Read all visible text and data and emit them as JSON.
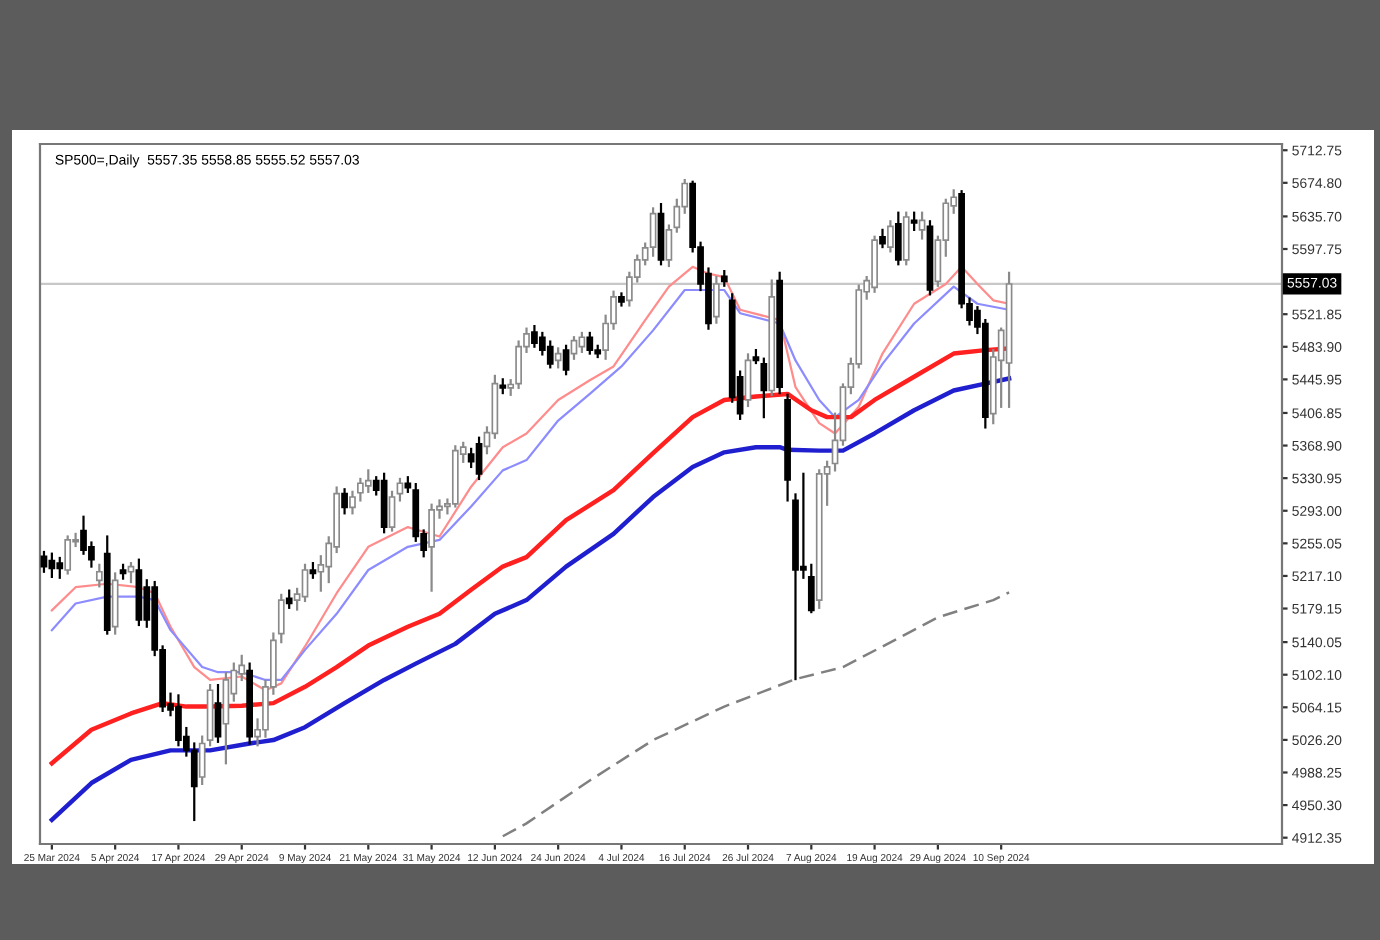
{
  "chart_data": {
    "type": "candlestick",
    "title": "SP500=,Daily  5557.35 5558.85 5555.52 5557.03",
    "categories": [
      null,
      "25 Mar 2024",
      null,
      null,
      null,
      null,
      null,
      null,
      null,
      "5 Apr 2024",
      null,
      null,
      null,
      null,
      null,
      null,
      null,
      "17 Apr 2024",
      null,
      null,
      null,
      null,
      null,
      null,
      null,
      "29 Apr 2024",
      null,
      null,
      null,
      null,
      null,
      null,
      null,
      "9 May 2024",
      null,
      null,
      null,
      null,
      null,
      null,
      null,
      "21 May 2024",
      null,
      null,
      null,
      null,
      null,
      null,
      null,
      "31 May 2024",
      null,
      null,
      null,
      null,
      null,
      null,
      null,
      "12 Jun 2024",
      null,
      null,
      null,
      null,
      null,
      null,
      null,
      "24 Jun 2024",
      null,
      null,
      null,
      null,
      null,
      null,
      null,
      "4 Jul 2024",
      null,
      null,
      null,
      null,
      null,
      null,
      null,
      "16 Jul 2024",
      null,
      null,
      null,
      null,
      null,
      null,
      null,
      "26 Jul 2024",
      null,
      null,
      null,
      null,
      null,
      null,
      null,
      "7 Aug 2024",
      null,
      null,
      null,
      null,
      null,
      null,
      null,
      "19 Aug 2024",
      null,
      null,
      null,
      null,
      null,
      null,
      null,
      "29 Aug 2024",
      null,
      null,
      null,
      null,
      null,
      null,
      null,
      "10 Sep 2024",
      null,
      null,
      null,
      null,
      null,
      null,
      null,
      null,
      null,
      null,
      null,
      null,
      null,
      null,
      null,
      null,
      null,
      null,
      null,
      null,
      null,
      null,
      null,
      null,
      null,
      null,
      null,
      null,
      null,
      null,
      null,
      null,
      null,
      null,
      null
    ],
    "ohlc": [
      [
        5240,
        5245,
        5222,
        5228
      ],
      [
        5235,
        5243,
        5216,
        5226
      ],
      [
        5232,
        5238,
        5215,
        5226
      ],
      [
        5224,
        5263,
        5220,
        5259
      ],
      [
        5257,
        5266,
        5252,
        5259
      ],
      [
        5270,
        5286,
        5243,
        5247
      ],
      [
        5251,
        5256,
        5228,
        5236
      ],
      [
        5212,
        5230,
        5205,
        5222
      ],
      [
        5243,
        5263,
        5150,
        5154
      ],
      [
        5158,
        5220,
        5150,
        5212
      ],
      [
        5224,
        5230,
        5214,
        5220
      ],
      [
        5222,
        5232,
        5210,
        5228
      ],
      [
        5224,
        5236,
        5160,
        5166
      ],
      [
        5204,
        5212,
        5158,
        5166
      ],
      [
        5204,
        5210,
        5125,
        5131
      ],
      [
        5131,
        5135,
        5060,
        5065
      ],
      [
        5068,
        5080,
        5055,
        5061
      ],
      [
        5065,
        5078,
        5020,
        5026
      ],
      [
        5030,
        5040,
        5008,
        5014
      ],
      [
        5014,
        5022,
        4933,
        4972
      ],
      [
        4983,
        5030,
        4975,
        5022
      ],
      [
        5026,
        5090,
        5020,
        5084
      ],
      [
        5069,
        5090,
        5024,
        5030
      ],
      [
        5045,
        5104,
        4999,
        5096
      ],
      [
        5080,
        5115,
        5072,
        5107
      ],
      [
        5103,
        5124,
        5096,
        5113
      ],
      [
        5107,
        5115,
        5022,
        5030
      ],
      [
        5030,
        5050,
        5020,
        5038
      ],
      [
        5038,
        5095,
        5030,
        5088
      ],
      [
        5088,
        5150,
        5080,
        5142
      ],
      [
        5150,
        5195,
        5140,
        5189
      ],
      [
        5191,
        5200,
        5180,
        5185
      ],
      [
        5189,
        5202,
        5178,
        5196
      ],
      [
        5193,
        5230,
        5188,
        5224
      ],
      [
        5224,
        5232,
        5215,
        5220
      ],
      [
        5222,
        5240,
        5200,
        5230
      ],
      [
        5228,
        5262,
        5210,
        5255
      ],
      [
        5251,
        5320,
        5245,
        5313
      ],
      [
        5313,
        5318,
        5290,
        5297
      ],
      [
        5297,
        5315,
        5290,
        5309
      ],
      [
        5314,
        5330,
        5305,
        5325
      ],
      [
        5322,
        5340,
        5315,
        5328
      ],
      [
        5328,
        5332,
        5312,
        5317
      ],
      [
        5328,
        5336,
        5268,
        5274
      ],
      [
        5274,
        5315,
        5270,
        5309
      ],
      [
        5313,
        5330,
        5305,
        5325
      ],
      [
        5325,
        5332,
        5315,
        5320
      ],
      [
        5317,
        5324,
        5258,
        5263
      ],
      [
        5266,
        5270,
        5240,
        5247
      ],
      [
        5251,
        5300,
        5200,
        5294
      ],
      [
        5294,
        5305,
        5285,
        5298
      ],
      [
        5298,
        5306,
        5290,
        5301
      ],
      [
        5301,
        5368,
        5298,
        5363
      ],
      [
        5359,
        5372,
        5350,
        5367
      ],
      [
        5359,
        5365,
        5344,
        5350
      ],
      [
        5371,
        5378,
        5330,
        5336
      ],
      [
        5368,
        5390,
        5360,
        5384
      ],
      [
        5383,
        5450,
        5378,
        5441
      ],
      [
        5439,
        5446,
        5430,
        5436
      ],
      [
        5436,
        5445,
        5428,
        5440
      ],
      [
        5441,
        5490,
        5436,
        5484
      ],
      [
        5484,
        5505,
        5478,
        5499
      ],
      [
        5501,
        5508,
        5484,
        5488
      ],
      [
        5495,
        5500,
        5475,
        5480
      ],
      [
        5484,
        5490,
        5460,
        5464
      ],
      [
        5468,
        5482,
        5460,
        5476
      ],
      [
        5480,
        5485,
        5452,
        5457
      ],
      [
        5476,
        5495,
        5470,
        5491
      ],
      [
        5484,
        5500,
        5478,
        5495
      ],
      [
        5495,
        5500,
        5476,
        5480
      ],
      [
        5480,
        5485,
        5472,
        5476
      ],
      [
        5480,
        5520,
        5470,
        5511
      ],
      [
        5511,
        5548,
        5505,
        5542
      ],
      [
        5542,
        5546,
        5532,
        5536
      ],
      [
        5538,
        5570,
        5532,
        5565
      ],
      [
        5565,
        5590,
        5560,
        5585
      ],
      [
        5585,
        5604,
        5580,
        5599
      ],
      [
        5600,
        5645,
        5590,
        5639
      ],
      [
        5639,
        5650,
        5580,
        5585
      ],
      [
        5585,
        5625,
        5578,
        5620
      ],
      [
        5623,
        5655,
        5618,
        5647
      ],
      [
        5647,
        5678,
        5640,
        5674
      ],
      [
        5674,
        5676,
        5595,
        5600
      ],
      [
        5600,
        5605,
        5550,
        5557
      ],
      [
        5569,
        5575,
        5505,
        5511
      ],
      [
        5519,
        5565,
        5512,
        5557
      ],
      [
        5566,
        5572,
        5555,
        5560
      ],
      [
        5538,
        5545,
        5420,
        5425
      ],
      [
        5449,
        5455,
        5400,
        5406
      ],
      [
        5422,
        5475,
        5415,
        5468
      ],
      [
        5472,
        5480,
        5465,
        5468
      ],
      [
        5464,
        5470,
        5402,
        5433
      ],
      [
        5433,
        5561,
        5428,
        5542
      ],
      [
        5561,
        5570,
        5430,
        5437
      ],
      [
        5422,
        5428,
        5305,
        5329
      ],
      [
        5305,
        5312,
        5097,
        5224
      ],
      [
        5228,
        5336,
        5215,
        5224
      ],
      [
        5216,
        5230,
        5175,
        5177
      ],
      [
        5189,
        5340,
        5180,
        5336
      ],
      [
        5336,
        5350,
        5300,
        5344
      ],
      [
        5348,
        5406,
        5340,
        5375
      ],
      [
        5375,
        5440,
        5370,
        5437
      ],
      [
        5437,
        5470,
        5430,
        5464
      ],
      [
        5464,
        5555,
        5460,
        5550
      ],
      [
        5548,
        5565,
        5540,
        5561
      ],
      [
        5553,
        5612,
        5548,
        5608
      ],
      [
        5612,
        5620,
        5600,
        5604
      ],
      [
        5600,
        5630,
        5595,
        5624
      ],
      [
        5627,
        5640,
        5580,
        5585
      ],
      [
        5585,
        5640,
        5580,
        5635
      ],
      [
        5631,
        5640,
        5620,
        5628
      ],
      [
        5620,
        5640,
        5610,
        5631
      ],
      [
        5624,
        5630,
        5545,
        5550
      ],
      [
        5560,
        5612,
        5555,
        5608
      ],
      [
        5608,
        5655,
        5590,
        5651
      ],
      [
        5648,
        5666,
        5640,
        5658
      ],
      [
        5662,
        5665,
        5530,
        5534
      ],
      [
        5534,
        5540,
        5510,
        5515
      ],
      [
        5526,
        5530,
        5500,
        5507
      ],
      [
        5511,
        5515,
        5390,
        5402
      ],
      [
        5406,
        5480,
        5395,
        5472
      ],
      [
        5468,
        5505,
        5414,
        5503
      ],
      [
        5465,
        5570,
        5414,
        5557
      ],
      null,
      null,
      null,
      null,
      null,
      null,
      null,
      null,
      null,
      null,
      null,
      null,
      null,
      null,
      null,
      null,
      null,
      null,
      null,
      null,
      null,
      null,
      null,
      null,
      null,
      null,
      null,
      null,
      null,
      null,
      null,
      null,
      null,
      null
    ],
    "series": [
      {
        "type": "line",
        "color": "#ff8c8c",
        "line_style": "solid",
        "values": [
          null,
          5177,
          null,
          null,
          5204,
          null,
          null,
          null,
          5208,
          null,
          null,
          null,
          5204,
          null,
          5197,
          null,
          5158,
          null,
          null,
          5111,
          null,
          5096,
          null,
          null,
          null,
          5100,
          null,
          null,
          5084,
          null,
          5092,
          null,
          null,
          5135,
          null,
          null,
          null,
          5197,
          null,
          null,
          null,
          5251,
          null,
          null,
          null,
          null,
          5274,
          null,
          null,
          null,
          5263,
          null,
          null,
          null,
          5321,
          null,
          null,
          null,
          5367,
          null,
          null,
          5383,
          null,
          null,
          null,
          5422,
          null,
          null,
          null,
          5445,
          null,
          null,
          5461,
          null,
          null,
          null,
          5515,
          null,
          null,
          5554,
          null,
          null,
          5577,
          null,
          5569,
          null,
          5565,
          null,
          5527,
          null,
          null,
          null,
          null,
          5515,
          null,
          5437,
          null,
          null,
          5395,
          null,
          5383,
          null,
          null,
          5414,
          null,
          null,
          5476,
          null,
          null,
          null,
          5534,
          null,
          null,
          null,
          5557,
          null,
          5577,
          null,
          5557,
          null,
          5538,
          null,
          5534,
          null,
          null,
          null,
          null,
          null,
          null,
          null,
          null,
          null,
          null,
          null,
          null,
          null,
          null,
          null,
          null,
          null,
          null,
          null,
          null,
          null,
          null,
          null,
          null,
          null,
          null,
          null,
          null,
          null,
          null,
          null,
          null,
          null,
          null
        ]
      },
      {
        "type": "line",
        "color": "#8c8cff",
        "line_style": "solid",
        "values": [
          null,
          5154,
          null,
          null,
          5185,
          null,
          null,
          null,
          5193,
          null,
          null,
          null,
          5193,
          null,
          5189,
          null,
          5154,
          null,
          null,
          null,
          5111,
          null,
          5105,
          null,
          null,
          5105,
          null,
          null,
          5096,
          null,
          5096,
          null,
          null,
          5131,
          null,
          null,
          null,
          5173,
          null,
          null,
          null,
          5224,
          null,
          null,
          null,
          null,
          5251,
          null,
          null,
          null,
          5259,
          null,
          null,
          null,
          5298,
          null,
          null,
          null,
          5340,
          null,
          null,
          5352,
          null,
          null,
          null,
          5398,
          null,
          null,
          null,
          5429,
          null,
          null,
          null,
          5461,
          null,
          null,
          null,
          5503,
          null,
          null,
          null,
          5550,
          null,
          null,
          5550,
          null,
          5550,
          null,
          5523,
          null,
          null,
          null,
          null,
          5511,
          null,
          5468,
          null,
          null,
          5422,
          null,
          5402,
          null,
          null,
          5422,
          null,
          null,
          5464,
          null,
          null,
          null,
          5511,
          null,
          null,
          null,
          null,
          5554,
          null,
          null,
          5534,
          null,
          null,
          null,
          5527,
          null,
          null,
          null,
          null,
          null,
          null,
          null,
          null,
          null,
          null,
          null,
          null,
          null,
          null,
          null,
          null,
          null,
          null,
          null,
          null,
          null,
          null,
          null,
          null,
          null,
          null,
          null,
          null,
          null,
          null,
          null,
          null,
          null,
          null
        ]
      },
      {
        "type": "line",
        "color": "#ff2020",
        "line_style": "solid",
        "values": [
          null,
          4999,
          null,
          null,
          null,
          null,
          5038,
          null,
          null,
          null,
          null,
          5057,
          null,
          null,
          null,
          5069,
          null,
          null,
          5065,
          null,
          null,
          5065,
          null,
          null,
          null,
          5066,
          null,
          null,
          null,
          5069,
          null,
          null,
          null,
          5088,
          null,
          null,
          null,
          5111,
          null,
          null,
          null,
          5136,
          null,
          null,
          null,
          null,
          5158,
          null,
          null,
          null,
          5173,
          null,
          null,
          null,
          5201,
          null,
          null,
          null,
          5228,
          null,
          null,
          5239,
          null,
          null,
          null,
          null,
          5282,
          null,
          null,
          null,
          null,
          null,
          5317,
          null,
          null,
          null,
          null,
          5360,
          null,
          null,
          null,
          null,
          5402,
          null,
          null,
          null,
          5422,
          null,
          null,
          null,
          5426,
          null,
          null,
          null,
          5429,
          null,
          null,
          5410,
          null,
          5402,
          null,
          null,
          5402,
          null,
          null,
          5422,
          null,
          null,
          null,
          null,
          5449,
          null,
          null,
          null,
          null,
          5476,
          null,
          null,
          null,
          5480,
          null,
          null,
          5482,
          null,
          null,
          null,
          null,
          null,
          null,
          null,
          null,
          null,
          null,
          null,
          null,
          null,
          null,
          null,
          null,
          null,
          null,
          null,
          null,
          null,
          null,
          null,
          null,
          null,
          null,
          null,
          null,
          null,
          null,
          null,
          null,
          null,
          null
        ]
      },
      {
        "type": "line",
        "color": "#1f1fd0",
        "line_style": "solid",
        "values": [
          null,
          4933,
          null,
          null,
          null,
          null,
          4976,
          null,
          null,
          null,
          null,
          5003,
          null,
          null,
          null,
          null,
          5014,
          null,
          null,
          null,
          null,
          5014,
          null,
          null,
          null,
          null,
          5022,
          null,
          null,
          5026,
          null,
          null,
          null,
          5041,
          null,
          null,
          null,
          null,
          5069,
          null,
          null,
          null,
          null,
          5096,
          null,
          null,
          null,
          5115,
          null,
          null,
          null,
          null,
          5138,
          null,
          null,
          null,
          null,
          5173,
          null,
          null,
          null,
          5189,
          null,
          null,
          null,
          null,
          5228,
          null,
          null,
          null,
          null,
          null,
          5266,
          null,
          null,
          null,
          null,
          5309,
          null,
          null,
          null,
          null,
          5344,
          null,
          null,
          null,
          5361,
          null,
          null,
          null,
          5367,
          null,
          null,
          5367,
          5364,
          null,
          null,
          null,
          5363,
          null,
          null,
          5363,
          null,
          null,
          null,
          5383,
          null,
          null,
          null,
          null,
          5410,
          null,
          null,
          null,
          null,
          5433,
          null,
          null,
          null,
          5441,
          null,
          null,
          5447,
          null,
          null,
          null,
          null,
          null,
          null,
          null,
          null,
          null,
          null,
          null,
          null,
          null,
          null,
          null,
          null,
          null,
          null,
          null,
          null,
          null,
          null,
          null,
          null,
          null,
          null,
          null,
          null,
          null,
          null,
          null,
          null,
          null,
          null
        ]
      },
      {
        "type": "line",
        "color": "#808080",
        "line_style": "dashed",
        "values": [
          null,
          null,
          null,
          null,
          null,
          null,
          null,
          null,
          null,
          null,
          null,
          null,
          null,
          null,
          null,
          null,
          null,
          null,
          null,
          null,
          null,
          null,
          null,
          null,
          null,
          null,
          null,
          null,
          null,
          null,
          null,
          null,
          null,
          null,
          null,
          null,
          null,
          null,
          null,
          null,
          null,
          null,
          null,
          null,
          null,
          null,
          null,
          null,
          null,
          null,
          null,
          null,
          null,
          null,
          null,
          null,
          null,
          null,
          4914,
          null,
          null,
          4929,
          null,
          null,
          null,
          null,
          null,
          null,
          null,
          4979,
          null,
          null,
          null,
          null,
          null,
          null,
          null,
          5026,
          null,
          null,
          null,
          null,
          null,
          null,
          null,
          null,
          5065,
          null,
          null,
          null,
          null,
          null,
          null,
          null,
          null,
          5097,
          null,
          null,
          null,
          null,
          null,
          5111,
          null,
          null,
          null,
          null,
          5135,
          null,
          null,
          null,
          null,
          null,
          null,
          5169,
          null,
          null,
          null,
          null,
          null,
          null,
          5189,
          null,
          5198,
          null,
          null,
          null,
          null,
          null,
          null,
          null,
          null,
          null,
          null,
          null,
          null,
          null,
          null,
          null,
          null,
          null,
          null,
          null,
          null,
          null,
          null,
          null,
          null,
          null,
          null,
          null,
          null,
          null,
          null,
          null,
          null,
          null,
          null
        ]
      }
    ],
    "ylim": [
      4905,
      5720
    ],
    "yticks": [
      {
        "value": 4912.35,
        "label": "4912.35"
      },
      {
        "value": 4950.3,
        "label": "4950.30"
      },
      {
        "value": 4988.25,
        "label": "4988.25"
      },
      {
        "value": 5026.2,
        "label": "5026.20"
      },
      {
        "value": 5064.15,
        "label": "5064.15"
      },
      {
        "value": 5102.1,
        "label": "5102.10"
      },
      {
        "value": 5140.05,
        "label": "5140.05"
      },
      {
        "value": 5179.15,
        "label": "5179.15"
      },
      {
        "value": 5217.1,
        "label": "5217.10"
      },
      {
        "value": 5255.05,
        "label": "5255.05"
      },
      {
        "value": 5293.0,
        "label": "5293.00"
      },
      {
        "value": 5330.95,
        "label": "5330.95"
      },
      {
        "value": 5368.9,
        "label": "5368.90"
      },
      {
        "value": 5406.85,
        "label": "5406.85"
      },
      {
        "value": 5445.95,
        "label": "5445.95"
      },
      {
        "value": 5483.9,
        "label": "5483.90"
      },
      {
        "value": 5521.85,
        "label": "5521.85"
      },
      {
        "value": 5597.75,
        "label": "5597.75"
      },
      {
        "value": 5635.7,
        "label": "5635.70"
      },
      {
        "value": 5674.8,
        "label": "5674.80"
      },
      {
        "value": 5712.75,
        "label": "5712.75"
      }
    ],
    "ref_lines": [
      {
        "axis": "y",
        "value": 5557.03,
        "label": "5557.03",
        "color": "#c8c8c8"
      }
    ],
    "grid": false
  }
}
